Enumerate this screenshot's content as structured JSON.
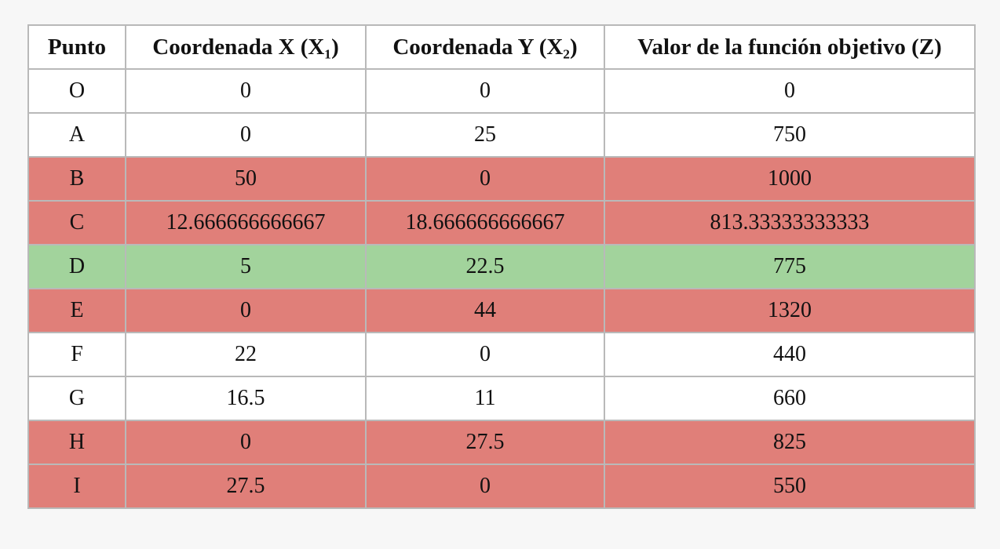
{
  "table": {
    "headers": [
      "Punto",
      "Coordenada X (X₁)",
      "Coordenada Y (X₂)",
      "Valor de la función objetivo (Z)"
    ],
    "row_colors": {
      "red": "#e07f79",
      "green": "#a2d39c",
      "plain": "#ffffff"
    },
    "rows": [
      {
        "status": "plain",
        "cells": [
          "O",
          "0",
          "0",
          "0"
        ]
      },
      {
        "status": "plain",
        "cells": [
          "A",
          "0",
          "25",
          "750"
        ]
      },
      {
        "status": "red",
        "cells": [
          "B",
          "50",
          "0",
          "1000"
        ]
      },
      {
        "status": "red",
        "cells": [
          "C",
          "12.666666666667",
          "18.666666666667",
          "813.33333333333"
        ]
      },
      {
        "status": "green",
        "cells": [
          "D",
          "5",
          "22.5",
          "775"
        ]
      },
      {
        "status": "red",
        "cells": [
          "E",
          "0",
          "44",
          "1320"
        ]
      },
      {
        "status": "plain",
        "cells": [
          "F",
          "22",
          "0",
          "440"
        ]
      },
      {
        "status": "plain",
        "cells": [
          "G",
          "16.5",
          "11",
          "660"
        ]
      },
      {
        "status": "red",
        "cells": [
          "H",
          "0",
          "27.5",
          "825"
        ]
      },
      {
        "status": "red",
        "cells": [
          "I",
          "27.5",
          "0",
          "550"
        ]
      }
    ]
  }
}
